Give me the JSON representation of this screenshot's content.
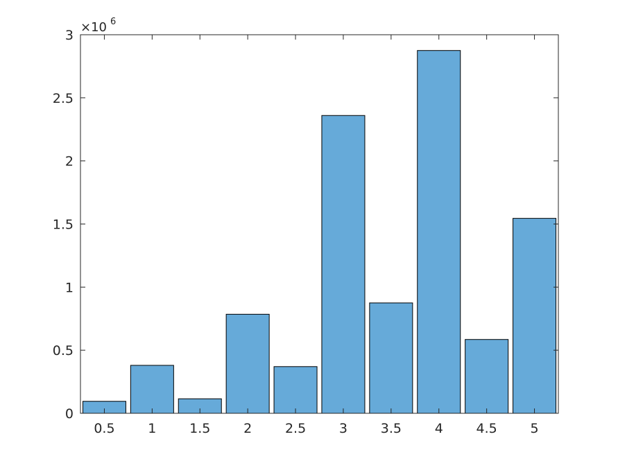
{
  "chart_data": {
    "type": "bar",
    "categories": [
      "0.5",
      "1",
      "1.5",
      "2",
      "2.5",
      "3",
      "3.5",
      "4",
      "4.5",
      "5"
    ],
    "values": [
      95000,
      380000,
      115000,
      785000,
      370000,
      2360000,
      875000,
      2875000,
      585000,
      1545000
    ],
    "title": "",
    "xlabel": "",
    "ylabel": "",
    "ylim": [
      0,
      3000000
    ],
    "yticks": [
      "0",
      "0.5",
      "1",
      "1.5",
      "2",
      "2.5",
      "3"
    ],
    "y_exponent": {
      "base": "×10",
      "power": "6"
    },
    "grid": false,
    "box": true,
    "bar_color": "#66aad9",
    "edge_color": "#000000"
  }
}
